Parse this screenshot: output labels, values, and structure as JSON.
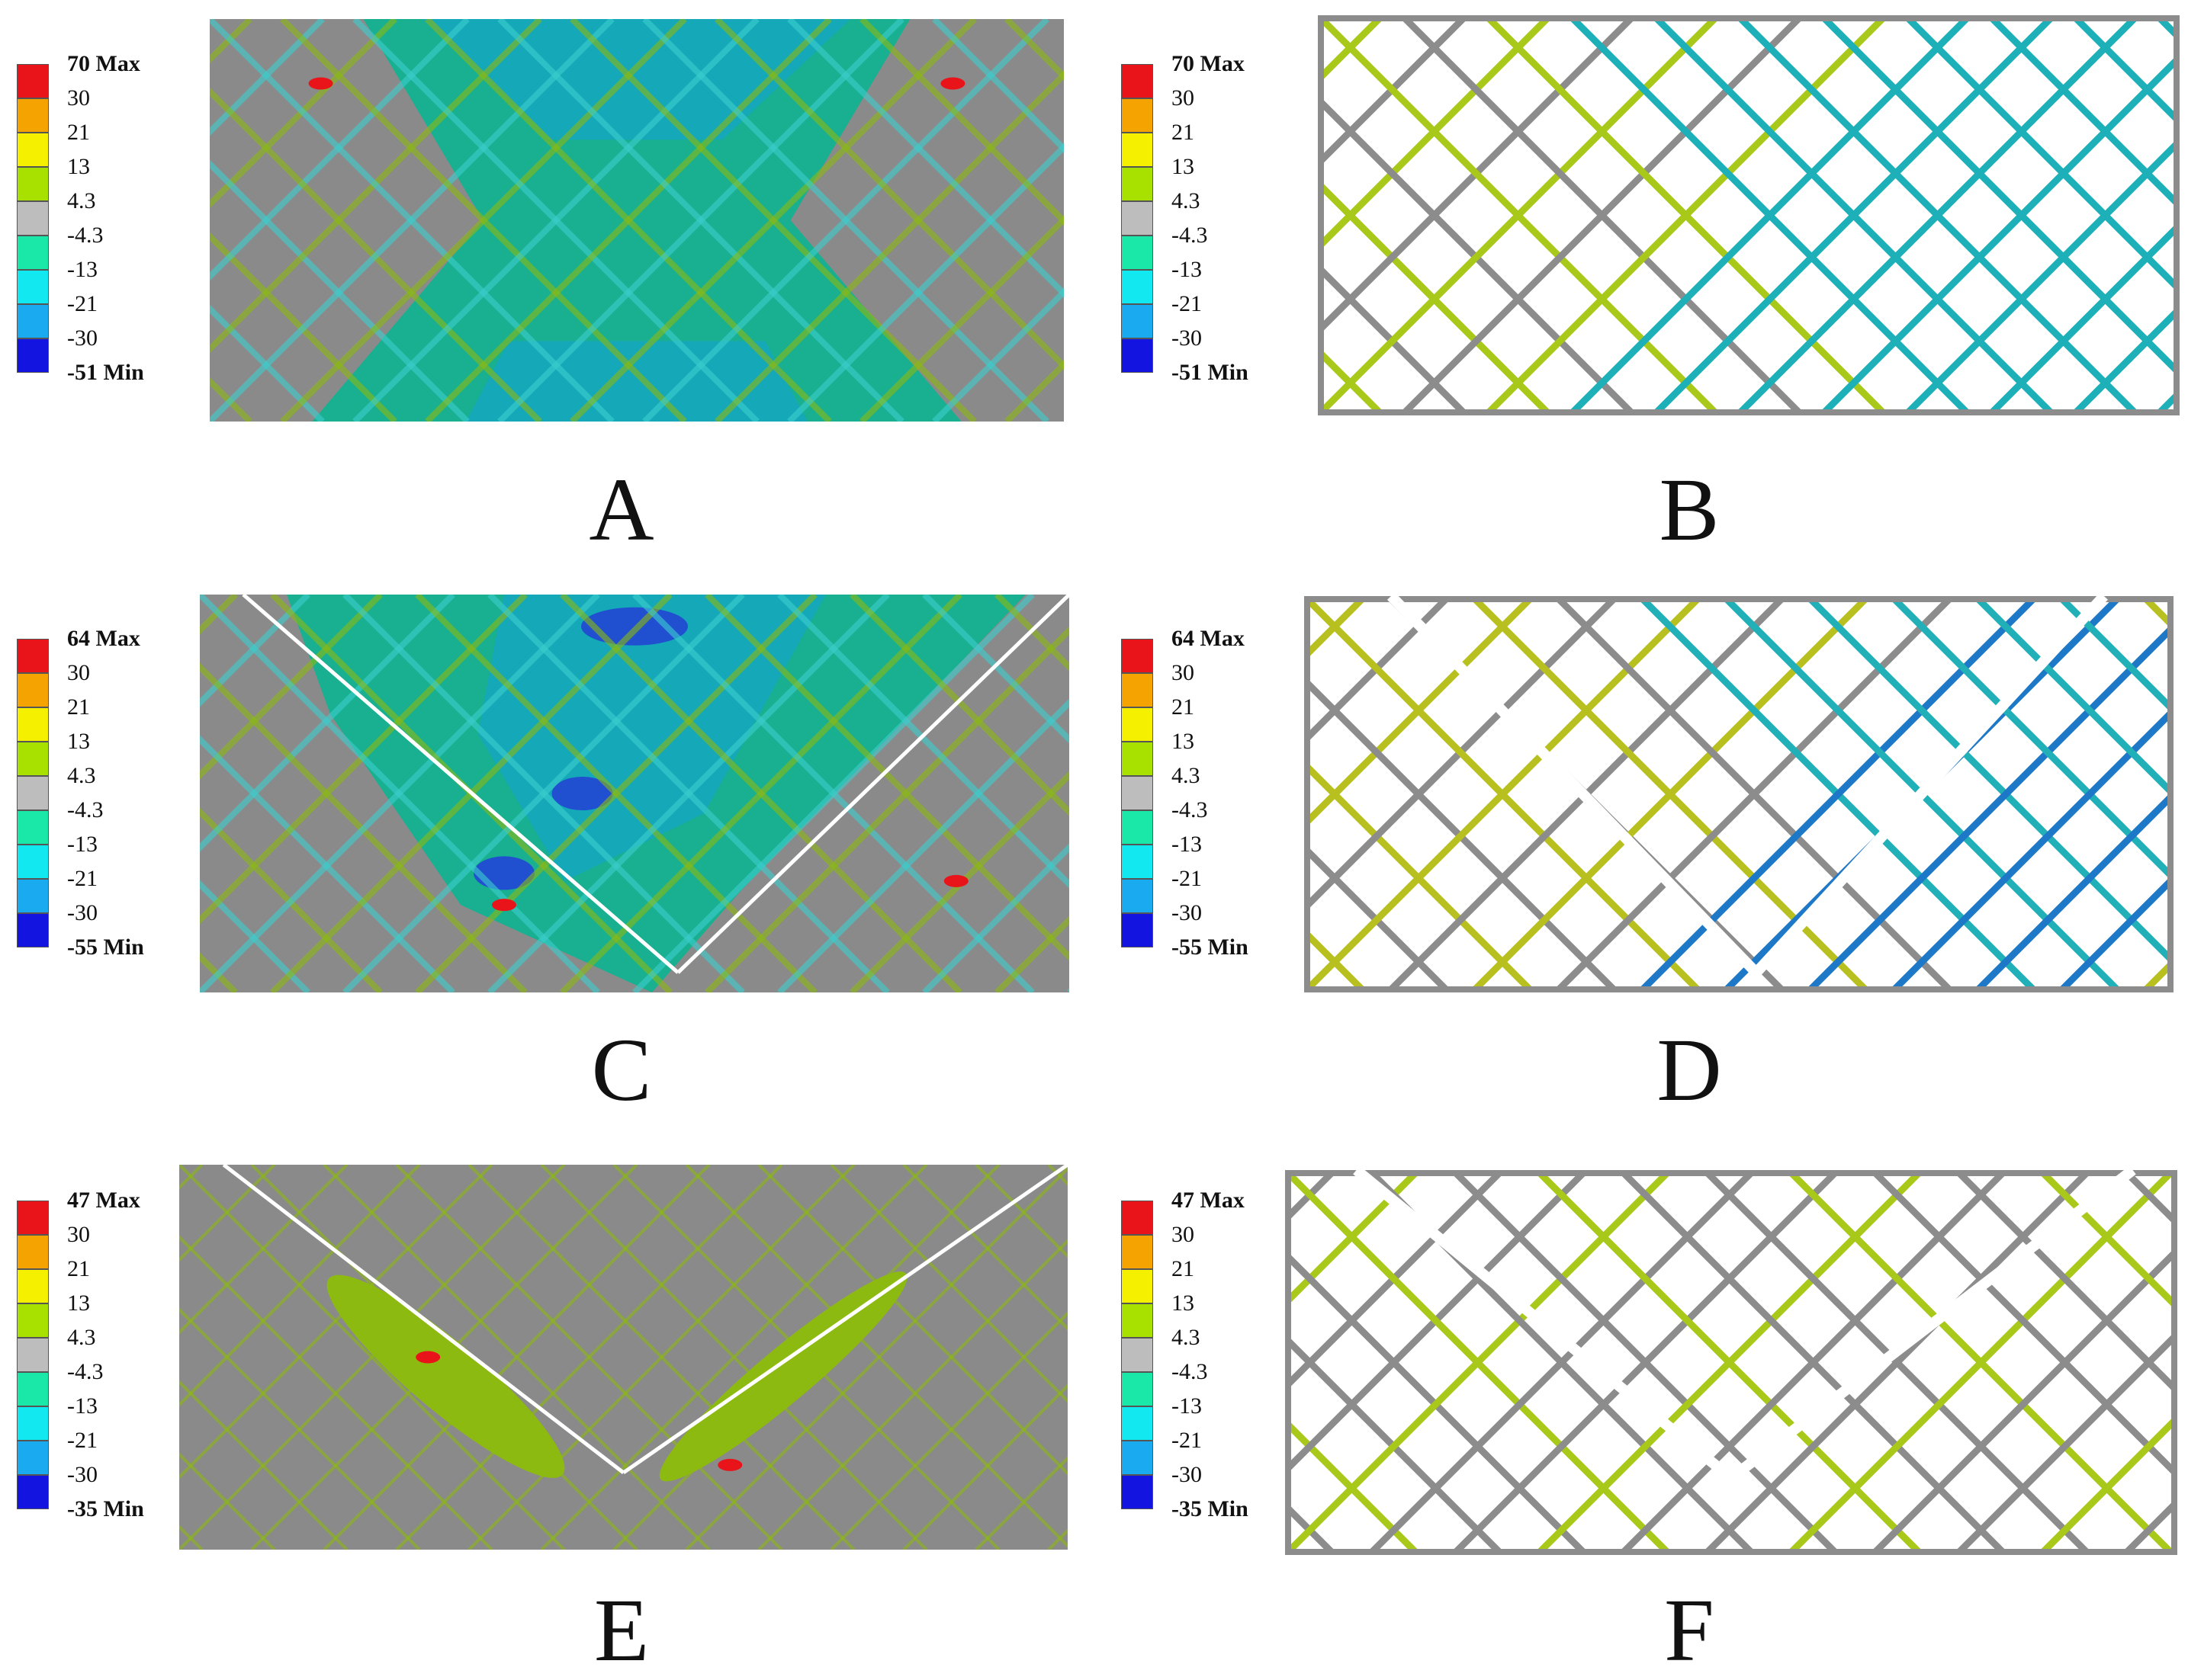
{
  "figure": {
    "colors": {
      "red": "#e8141a",
      "orange": "#f5a300",
      "yellow": "#f5f000",
      "lime": "#a8e000",
      "gray": "#bdbdbd",
      "mint": "#19e8a8",
      "cyan": "#12e8f0",
      "sky": "#1aaaf0",
      "blue": "#1414e0",
      "field_gray": "#8a8a8a",
      "field_green": "#18b090",
      "field_teal": "#14a8b8",
      "field_olive": "#8cba10"
    },
    "panels": [
      {
        "id": "A",
        "label": "A",
        "type": "solid",
        "legend": {
          "labels": [
            "70 Max",
            "30",
            "21",
            "13",
            "4.3",
            "-4.3",
            "-13",
            "-21",
            "-30",
            "-51 Min"
          ]
        }
      },
      {
        "id": "B",
        "label": "B",
        "type": "lattice",
        "legend": {
          "labels": [
            "70 Max",
            "30",
            "21",
            "13",
            "4.3",
            "-4.3",
            "-13",
            "-21",
            "-30",
            "-51 Min"
          ]
        }
      },
      {
        "id": "C",
        "label": "C",
        "type": "solid",
        "legend": {
          "labels": [
            "64 Max",
            "30",
            "21",
            "13",
            "4.3",
            "-4.3",
            "-13",
            "-21",
            "-30",
            "-55 Min"
          ]
        }
      },
      {
        "id": "D",
        "label": "D",
        "type": "lattice",
        "legend": {
          "labels": [
            "64 Max",
            "30",
            "21",
            "13",
            "4.3",
            "-4.3",
            "-13",
            "-21",
            "-30",
            "-55 Min"
          ]
        }
      },
      {
        "id": "E",
        "label": "E",
        "type": "solid",
        "legend": {
          "labels": [
            "47 Max",
            "30",
            "21",
            "13",
            "4.3",
            "-4.3",
            "-13",
            "-21",
            "-30",
            "-35 Min"
          ]
        }
      },
      {
        "id": "F",
        "label": "F",
        "type": "lattice",
        "legend": {
          "labels": [
            "47 Max",
            "30",
            "21",
            "13",
            "4.3",
            "-4.3",
            "-13",
            "-21",
            "-30",
            "-35 Min"
          ]
        }
      }
    ]
  }
}
